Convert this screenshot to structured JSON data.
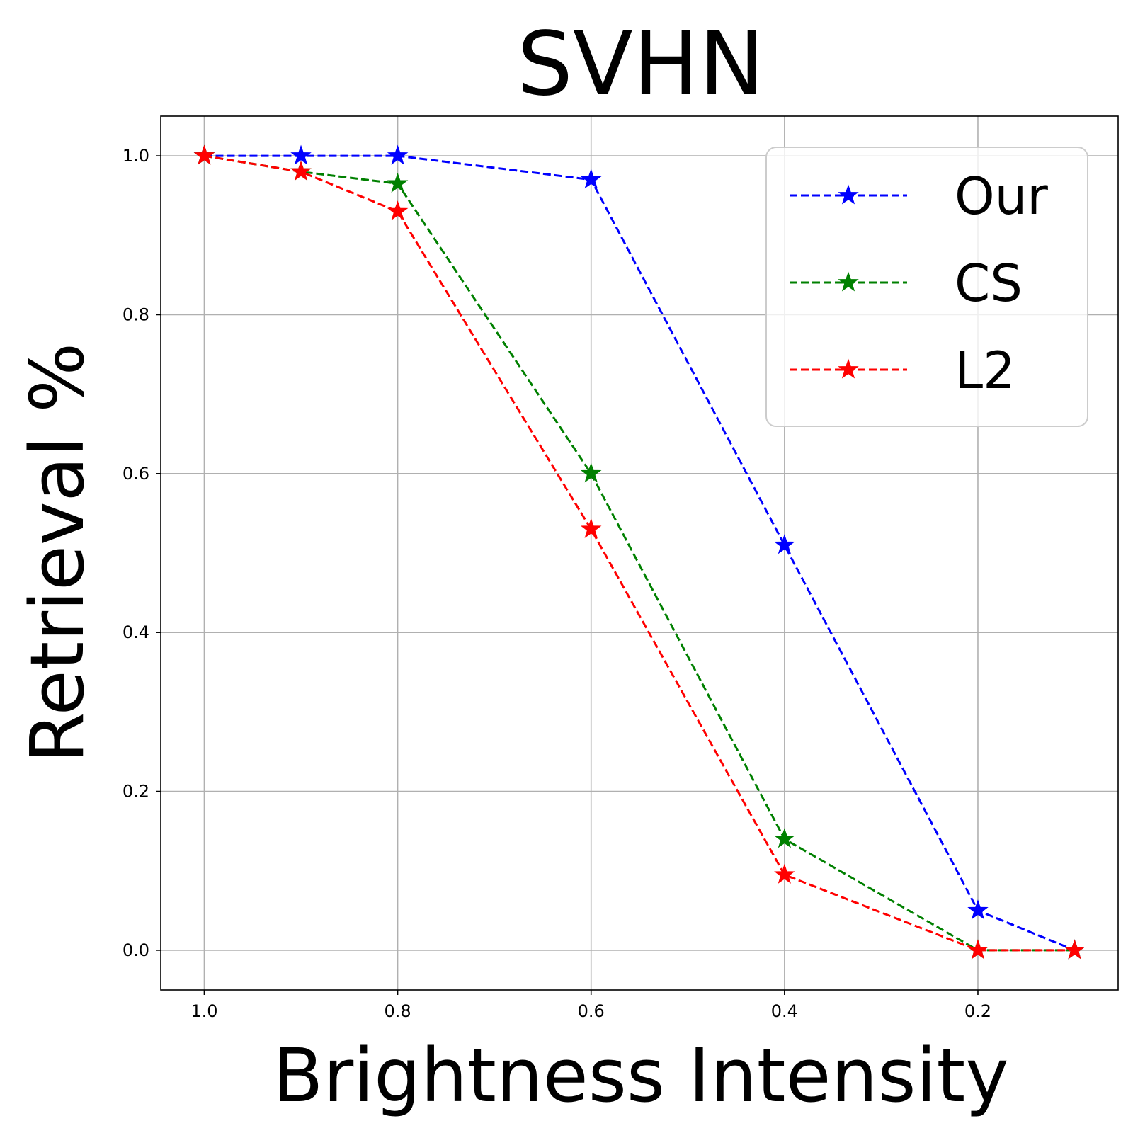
{
  "chart_data": {
    "type": "line",
    "title": "SVHN",
    "xlabel": "Brightness Intensity",
    "ylabel": "Retrieval %",
    "x": [
      1.0,
      0.9,
      0.8,
      0.6,
      0.4,
      0.2,
      0.1
    ],
    "xlim": [
      1.045,
      0.055
    ],
    "ylim": [
      -0.05,
      1.05
    ],
    "xticks": [
      1.0,
      0.8,
      0.6,
      0.4,
      0.2
    ],
    "xtick_labels": [
      "1.0",
      "0.8",
      "0.6",
      "0.4",
      "0.2"
    ],
    "yticks": [
      0.0,
      0.2,
      0.4,
      0.6,
      0.8,
      1.0
    ],
    "ytick_labels": [
      "0.0",
      "0.2",
      "0.4",
      "0.6",
      "0.8",
      "1.0"
    ],
    "grid": true,
    "legend_position": "upper right",
    "series": [
      {
        "name": "Our",
        "color": "#0000ff",
        "marker": "star",
        "linestyle": "dashed",
        "values": [
          1.0,
          1.0,
          1.0,
          0.97,
          0.51,
          0.05,
          0.0
        ]
      },
      {
        "name": "CS",
        "color": "#008000",
        "marker": "star",
        "linestyle": "dashed",
        "values": [
          1.0,
          0.98,
          0.965,
          0.6,
          0.14,
          0.0,
          0.0
        ]
      },
      {
        "name": "L2",
        "color": "#ff0000",
        "marker": "star",
        "linestyle": "dashed",
        "values": [
          1.0,
          0.98,
          0.93,
          0.53,
          0.095,
          0.0,
          0.0
        ]
      }
    ]
  }
}
